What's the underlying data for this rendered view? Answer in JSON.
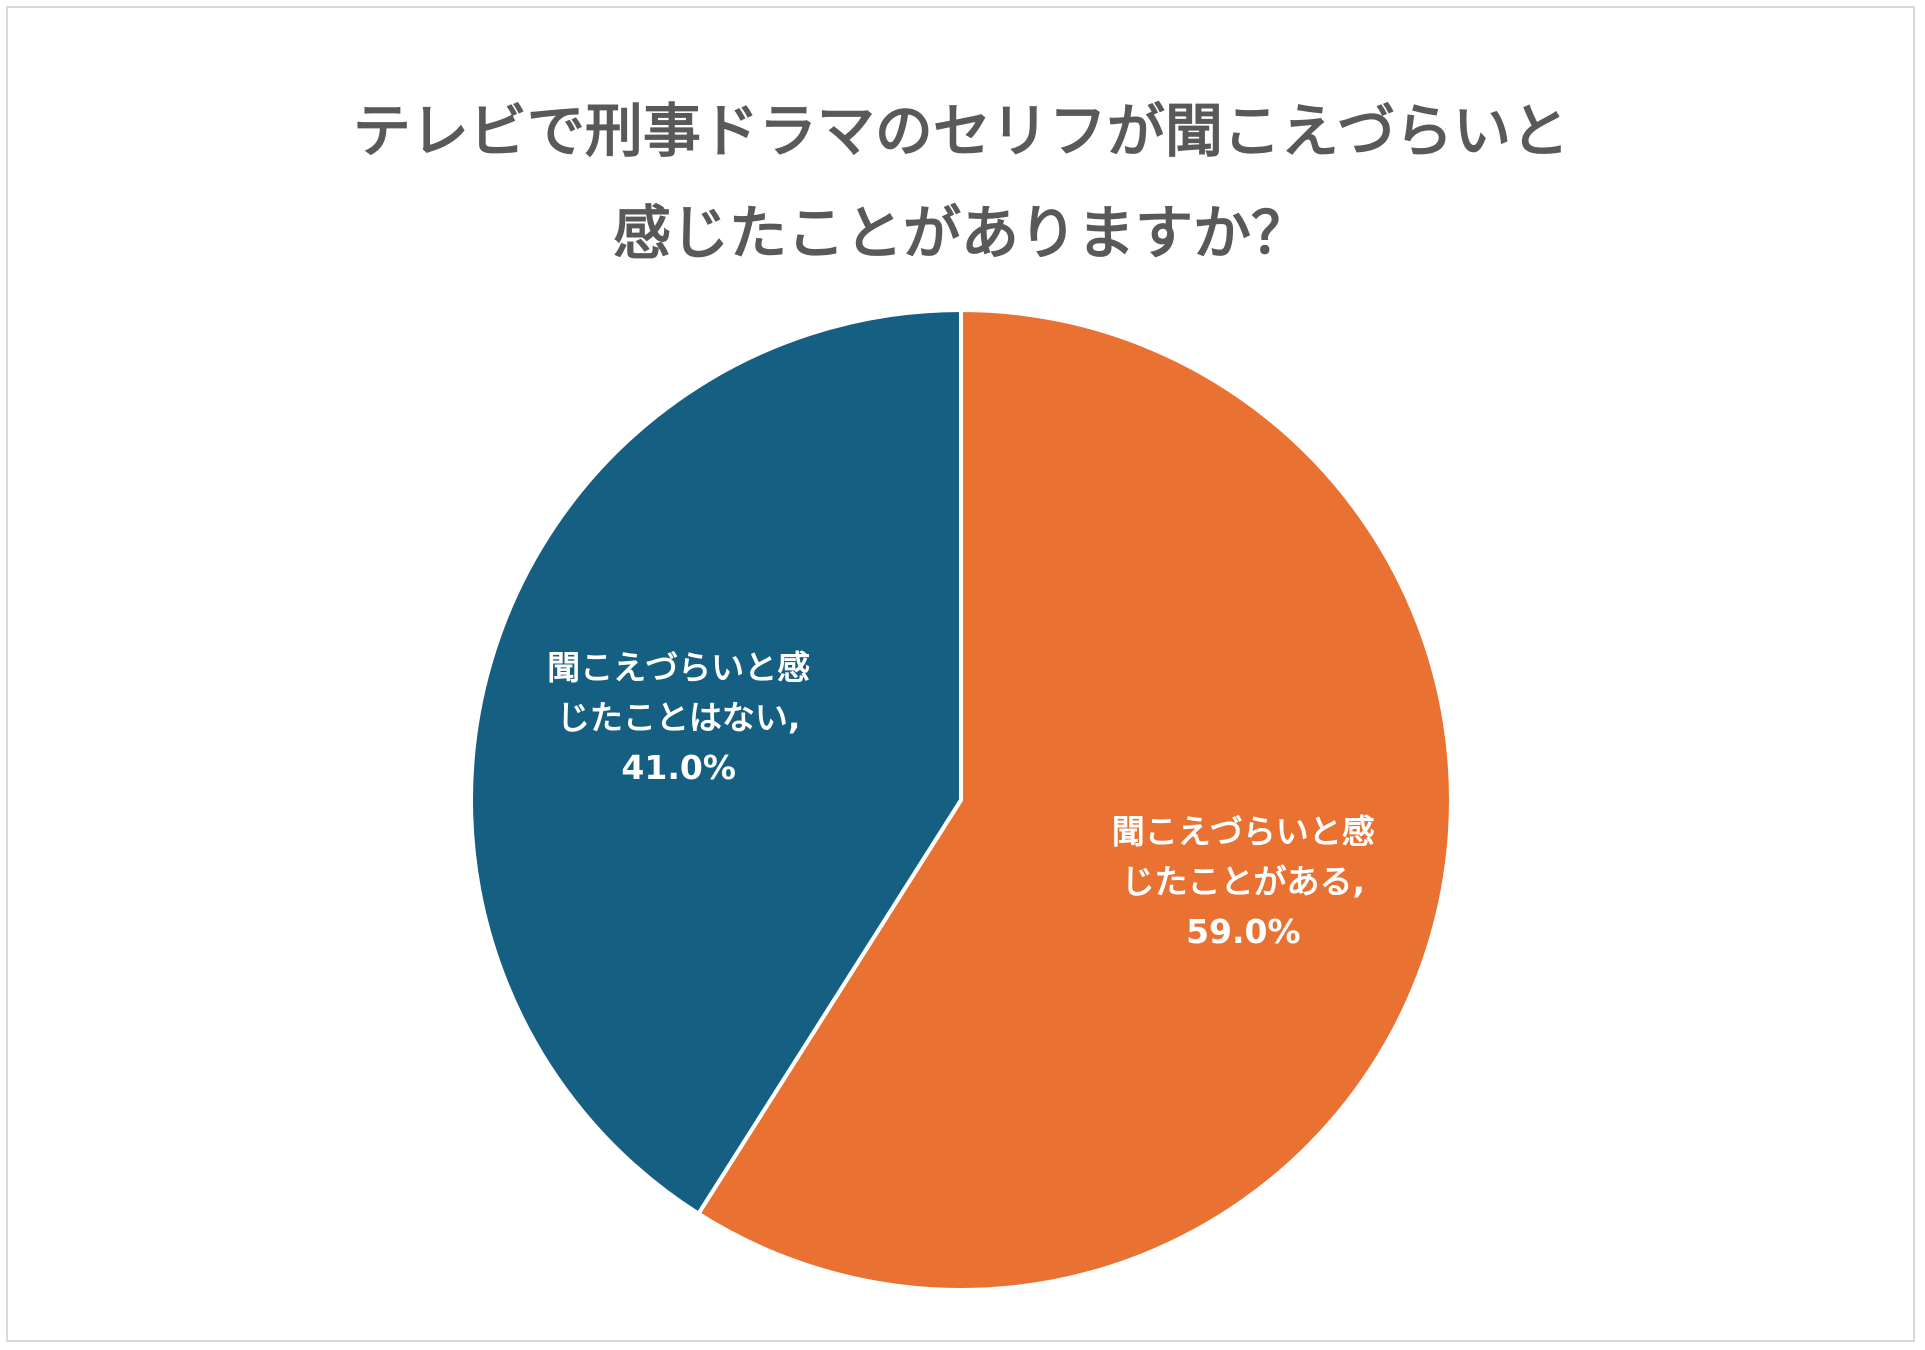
{
  "chart_data": {
    "type": "pie",
    "title": "テレビで刑事ドラマのセリフが聞こえづらいと感じたことがありますか？",
    "categories": [
      "聞こえづらいと感じたことがある",
      "聞こえづらいと感じたことはない"
    ],
    "values": [
      59,
      41
    ],
    "value_labels": [
      "59.0%",
      "41.0%"
    ],
    "colors": [
      "#e97132",
      "#156082"
    ]
  }
}
